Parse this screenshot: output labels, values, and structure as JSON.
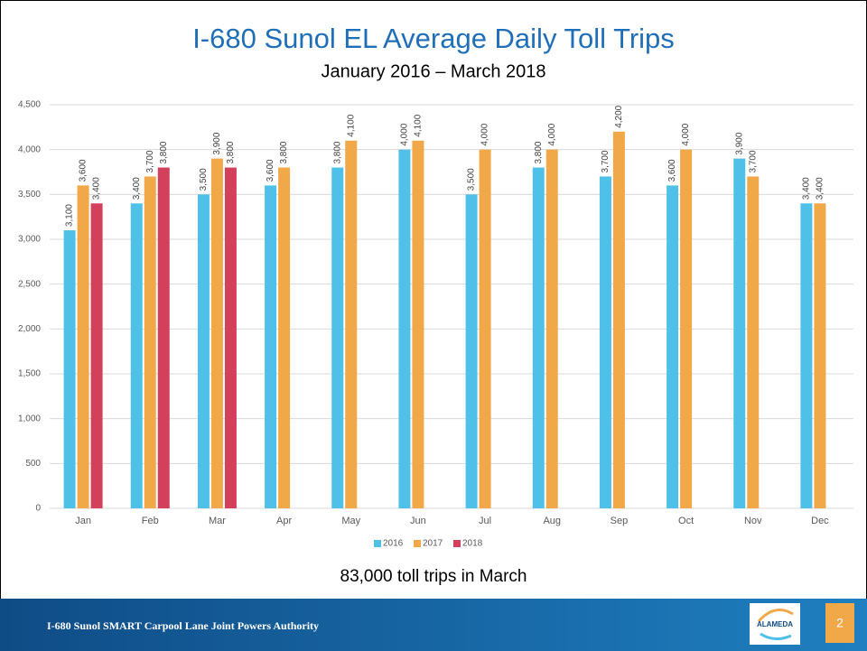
{
  "chart_data": {
    "type": "bar",
    "title": "I-680 Sunol EL Average Daily Toll Trips",
    "subtitle": "January 2016 – March 2018",
    "annotation": "83,000 toll trips in March",
    "categories": [
      "Jan",
      "Feb",
      "Mar",
      "Apr",
      "May",
      "Jun",
      "Jul",
      "Aug",
      "Sep",
      "Oct",
      "Nov",
      "Dec"
    ],
    "series": [
      {
        "name": "2016",
        "color": "#4fc1e9",
        "values": [
          3100,
          3400,
          3500,
          3600,
          3800,
          4000,
          3500,
          3800,
          3700,
          3600,
          3900,
          3400
        ],
        "value_labels": [
          "3,100",
          "3,400",
          "3,500",
          "3,600",
          "3,800",
          "4,000",
          "3,500",
          "3,800",
          "3,700",
          "3,600",
          "3,900",
          "3,400"
        ]
      },
      {
        "name": "2017",
        "color": "#f0a848",
        "values": [
          3600,
          3700,
          3900,
          3800,
          4100,
          4100,
          4000,
          4000,
          4200,
          4000,
          3700,
          3400
        ],
        "value_labels": [
          "3,600",
          "3,700",
          "3,900",
          "3,800",
          "4,100",
          "4,100",
          "4,000",
          "4,000",
          "4,200",
          "4,000",
          "3,700",
          "3,400"
        ]
      },
      {
        "name": "2018",
        "color": "#d2405b",
        "values": [
          3400,
          3800,
          3800,
          null,
          null,
          null,
          null,
          null,
          null,
          null,
          null,
          null
        ],
        "value_labels": [
          "3,400",
          "3,800",
          "3,800",
          null,
          null,
          null,
          null,
          null,
          null,
          null,
          null,
          null
        ]
      }
    ],
    "ylim": [
      0,
      4500
    ],
    "yticks": [
      0,
      500,
      {
        "value": 1000,
        "label": "1,000"
      },
      {
        "value": 1500,
        "label": "1,500"
      },
      {
        "value": 2000,
        "label": "2,000"
      },
      {
        "value": 2500,
        "label": "2,500"
      },
      {
        "value": 3000,
        "label": "3,000"
      },
      {
        "value": 3500,
        "label": "3,500"
      },
      {
        "value": 4000,
        "label": "4,000"
      },
      {
        "value": 4500,
        "label": "4,500"
      }
    ],
    "grid": true,
    "legend": "bottom"
  },
  "footer": {
    "text": "I-680 Sunol SMART Carpool Lane Joint Powers Authority",
    "page": "2",
    "logo": "ALAMEDA"
  }
}
